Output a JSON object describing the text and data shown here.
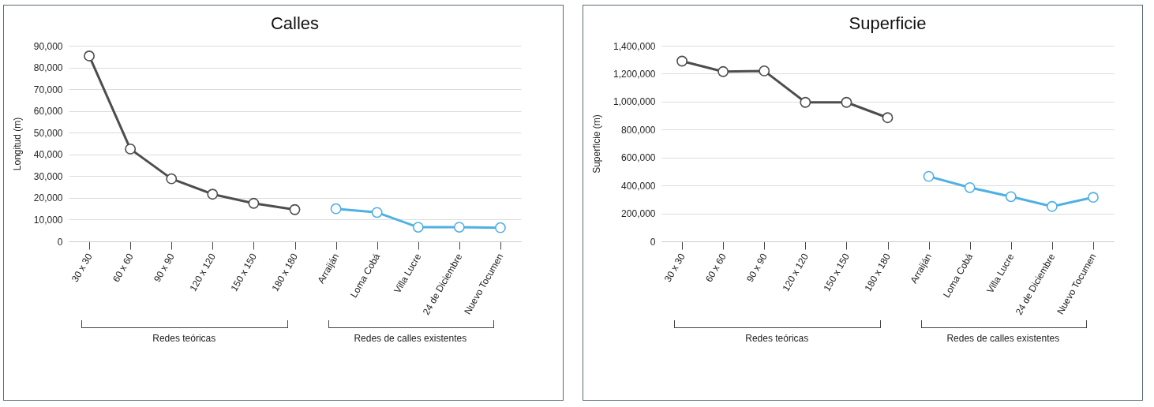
{
  "chart_data": [
    {
      "type": "line",
      "title": "Calles",
      "ylabel": "Longitud (m)",
      "categories": [
        "30 x 30",
        "60 x 60",
        "90 x 90",
        "120 x 120",
        "150 x 150",
        "180 x 180",
        "Arraiján",
        "Loma Cobá",
        "Villa Lucre",
        "24 de Diciembre",
        "Nuevo Tocumen"
      ],
      "series": [
        {
          "color": "#4d4d4f",
          "values": [
            85300,
            42500,
            28800,
            21700,
            17500,
            14600,
            null,
            null,
            null,
            null,
            null
          ]
        },
        {
          "color": "#4fb0e3",
          "values": [
            null,
            null,
            null,
            null,
            null,
            null,
            15000,
            13300,
            6500,
            6500,
            6300
          ]
        }
      ],
      "ylim": [
        0,
        90000
      ],
      "yticks": [
        0,
        {
          "value": 10000,
          "label": "10,000"
        },
        {
          "value": 20000,
          "label": "20,000"
        },
        {
          "value": 30000,
          "label": "30,000"
        },
        {
          "value": 40000,
          "label": "40,000"
        },
        {
          "value": 50000,
          "label": "50,000"
        },
        {
          "value": 60000,
          "label": "60,000"
        },
        {
          "value": 70000,
          "label": "70,000"
        },
        {
          "value": 80000,
          "label": "80,000"
        },
        {
          "value": 90000,
          "label": "90,000"
        }
      ],
      "grid": "y",
      "marker": "circle",
      "line_style": "solid",
      "annotations": [
        "Redes teóricas",
        "Redes de calles existentes"
      ]
    },
    {
      "type": "line",
      "title": "Superficie",
      "ylabel": "Superficie (m)",
      "categories": [
        "30 x 30",
        "60 x 60",
        "90 x 90",
        "120 x 120",
        "150 x 150",
        "180 x 180",
        "Arraiján",
        "Loma Cobá",
        "Villa Lucre",
        "24 de Diciembre",
        "Nuevo Tocumen"
      ],
      "series": [
        {
          "color": "#4d4d4f",
          "values": [
            1290000,
            1215000,
            1220000,
            995000,
            995000,
            885000,
            null,
            null,
            null,
            null,
            null
          ]
        },
        {
          "color": "#4fb0e3",
          "values": [
            null,
            null,
            null,
            null,
            null,
            null,
            465000,
            385000,
            320000,
            250000,
            315000
          ]
        }
      ],
      "ylim": [
        0,
        1400000
      ],
      "yticks": [
        0,
        {
          "value": 200000,
          "label": "200,000"
        },
        {
          "value": 400000,
          "label": "400,000"
        },
        {
          "value": 600000,
          "label": "600,000"
        },
        {
          "value": 800000,
          "label": "800,000"
        },
        {
          "value": 1000000,
          "label": "1,000,000"
        },
        {
          "value": 1200000,
          "label": "1,200,000"
        },
        {
          "value": 1400000,
          "label": "1,400,000"
        }
      ],
      "grid": "y",
      "marker": "circle",
      "line_style": "solid",
      "annotations": [
        "Redes teóricas",
        "Redes de calles existentes"
      ]
    }
  ]
}
